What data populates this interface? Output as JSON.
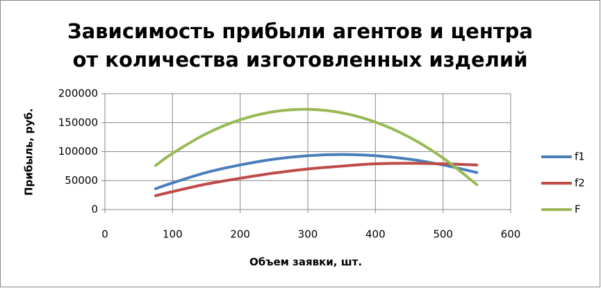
{
  "chart_data": {
    "type": "line",
    "title": [
      "Зависимость прибыли агентов и центра",
      "от количества изготовленных изделий"
    ],
    "x_label": "Объем заявки, шт.",
    "y_label": "Прибыль, руб.",
    "x": [
      75,
      100,
      150,
      200,
      250,
      300,
      350,
      400,
      450,
      500,
      550
    ],
    "series": [
      {
        "name": "f1",
        "color": "#4a7ebb",
        "values": [
          36000,
          46000,
          64000,
          77000,
          87000,
          93000,
          95000,
          93000,
          87000,
          77000,
          64000
        ]
      },
      {
        "name": "f2",
        "color": "#be4b48",
        "values": [
          24000,
          31000,
          44000,
          54000,
          63000,
          70000,
          75000,
          79000,
          80000,
          79000,
          77000
        ]
      },
      {
        "name": "F",
        "color": "#98b954",
        "values": [
          76000,
          97000,
          131000,
          155000,
          169000,
          173000,
          167000,
          151000,
          125000,
          89000,
          43000
        ]
      }
    ],
    "xlim": [
      0,
      600
    ],
    "xticks": [
      0,
      100,
      200,
      300,
      400,
      500,
      600
    ],
    "ylim": [
      0,
      200000
    ],
    "yticks": [
      0,
      50000,
      100000,
      150000,
      200000
    ],
    "grid": true,
    "legend": "right"
  }
}
